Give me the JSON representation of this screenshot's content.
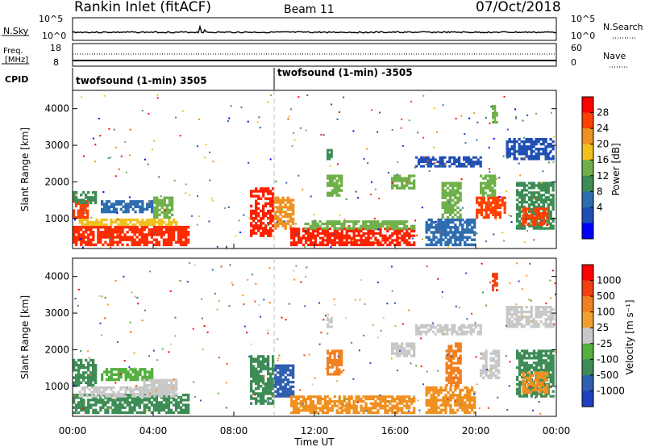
{
  "header": {
    "station": "Rankin Inlet (fitACF)",
    "beam": "Beam 11",
    "date": "07/Oct/2018"
  },
  "top_panels": {
    "nsky_label": "N.Sky",
    "nsky_ticks": [
      "10^5",
      "10^0"
    ],
    "nsearch_label": "N.Search",
    "nsearch_ticks": [
      "10^5",
      "10^0"
    ],
    "freq_label_line1": "Freq.",
    "freq_label_line2": "[MHz]",
    "freq_ticks": [
      "18",
      "8"
    ],
    "nave_label": "Nave",
    "nave_ticks": [
      "60",
      "0"
    ],
    "cpid_label": "CPID",
    "cpid_entries": [
      {
        "time_hours": 0,
        "text": "twofsound (1-min) 3505"
      },
      {
        "time_hours": 10,
        "text": "twofsound (1-min) -3505"
      }
    ]
  },
  "chart_data": [
    {
      "type": "heatmap",
      "title": "Power",
      "xlabel": "",
      "ylabel": "Slant Range [km]",
      "x_range_hours": [
        0,
        24
      ],
      "ylim": [
        180,
        4500
      ],
      "yticks": [
        1000,
        2000,
        3000,
        4000
      ],
      "colorbar": {
        "label": "Power [dB]",
        "ticks": [
          "28",
          "24",
          "20",
          "16",
          "12",
          "8",
          "4"
        ],
        "colors": [
          "#0000ff",
          "#1f4fb4",
          "#2e6db0",
          "#3d8c55",
          "#6fb04a",
          "#f0c020",
          "#f09020",
          "#ff4000",
          "#ff0000"
        ]
      },
      "regions": [
        {
          "t0": 0.0,
          "t1": 5.8,
          "r0": 250,
          "r1": 800,
          "color": "#ff2a00"
        },
        {
          "t0": 0.3,
          "t1": 5.2,
          "r0": 800,
          "r1": 1000,
          "color": "#f0c020"
        },
        {
          "t0": 0.0,
          "t1": 0.8,
          "r0": 1000,
          "r1": 1500,
          "color": "#ff4000"
        },
        {
          "t0": 0.0,
          "t1": 1.2,
          "r0": 1400,
          "r1": 1750,
          "color": "#3d8c55"
        },
        {
          "t0": 1.4,
          "t1": 4.0,
          "r0": 1150,
          "r1": 1500,
          "color": "#2e6db0"
        },
        {
          "t0": 4.0,
          "t1": 5.0,
          "r0": 1000,
          "r1": 1600,
          "color": "#6fb04a"
        },
        {
          "t0": 8.8,
          "t1": 10.0,
          "r0": 500,
          "r1": 1850,
          "color": "#ff2000"
        },
        {
          "t0": 10.0,
          "t1": 11.0,
          "r0": 700,
          "r1": 1600,
          "color": "#f09020"
        },
        {
          "t0": 10.8,
          "t1": 17.0,
          "r0": 250,
          "r1": 750,
          "color": "#ff2000"
        },
        {
          "t0": 11.5,
          "t1": 17.0,
          "r0": 700,
          "r1": 950,
          "color": "#6fb04a"
        },
        {
          "t0": 12.6,
          "t1": 13.4,
          "r0": 1600,
          "r1": 2200,
          "color": "#6fb04a"
        },
        {
          "t0": 12.6,
          "t1": 12.9,
          "r0": 2600,
          "r1": 2900,
          "color": "#3d8c55"
        },
        {
          "t0": 15.8,
          "t1": 17.0,
          "r0": 1800,
          "r1": 2200,
          "color": "#6fb04a"
        },
        {
          "t0": 17.0,
          "t1": 20.3,
          "r0": 2400,
          "r1": 2700,
          "color": "#1f4fb4"
        },
        {
          "t0": 17.5,
          "t1": 20.0,
          "r0": 250,
          "r1": 1000,
          "color": "#2e6db0"
        },
        {
          "t0": 18.3,
          "t1": 19.3,
          "r0": 1000,
          "r1": 2000,
          "color": "#6fb04a"
        },
        {
          "t0": 20.0,
          "t1": 21.5,
          "r0": 1000,
          "r1": 1600,
          "color": "#ff4000"
        },
        {
          "t0": 20.2,
          "t1": 21.0,
          "r0": 1600,
          "r1": 2200,
          "color": "#6fb04a"
        },
        {
          "t0": 20.8,
          "t1": 21.1,
          "r0": 3600,
          "r1": 4100,
          "color": "#6fb04a"
        },
        {
          "t0": 22.0,
          "t1": 23.9,
          "r0": 700,
          "r1": 2000,
          "color": "#3d8c55"
        },
        {
          "t0": 22.3,
          "t1": 23.6,
          "r0": 800,
          "r1": 1300,
          "color": "#ff4000"
        },
        {
          "t0": 21.5,
          "t1": 23.9,
          "r0": 2600,
          "r1": 3200,
          "color": "#1f4fb4"
        }
      ]
    },
    {
      "type": "heatmap",
      "title": "Velocity",
      "xlabel": "Time UT",
      "ylabel": "Slant Range [km]",
      "x_range_hours": [
        0,
        24
      ],
      "xtick_labels": [
        "00:00",
        "04:00",
        "08:00",
        "12:00",
        "16:00",
        "20:00",
        "00:00"
      ],
      "ylim": [
        180,
        4500
      ],
      "yticks": [
        1000,
        2000,
        3000,
        4000
      ],
      "colorbar": {
        "label": "Velocity [m s⁻¹]",
        "ticks": [
          "1000",
          "500",
          "100",
          "25",
          "-25",
          "-100",
          "-500",
          "-1000"
        ],
        "colors": [
          "#1f3fc0",
          "#2e5fb0",
          "#3d8c55",
          "#55b040",
          "#c8c8c8",
          "#f0a030",
          "#f08020",
          "#f04010",
          "#ff0000"
        ]
      },
      "regions": [
        {
          "t0": 0.0,
          "t1": 5.8,
          "r0": 250,
          "r1": 800,
          "color": "#3d8c55"
        },
        {
          "t0": 0.3,
          "t1": 5.2,
          "r0": 700,
          "r1": 1000,
          "color": "#c8c8c8"
        },
        {
          "t0": 0.0,
          "t1": 1.2,
          "r0": 1000,
          "r1": 1750,
          "color": "#3d8c55"
        },
        {
          "t0": 1.4,
          "t1": 4.0,
          "r0": 1150,
          "r1": 1500,
          "color": "#55b040"
        },
        {
          "t0": 3.5,
          "t1": 5.2,
          "r0": 800,
          "r1": 1200,
          "color": "#c8c8c8"
        },
        {
          "t0": 8.8,
          "t1": 10.0,
          "r0": 500,
          "r1": 1850,
          "color": "#3d8c55"
        },
        {
          "t0": 10.0,
          "t1": 11.0,
          "r0": 700,
          "r1": 1600,
          "color": "#2e5fb0"
        },
        {
          "t0": 10.8,
          "t1": 17.0,
          "r0": 250,
          "r1": 750,
          "color": "#f09020"
        },
        {
          "t0": 12.6,
          "t1": 13.4,
          "r0": 1300,
          "r1": 2000,
          "color": "#f08020"
        },
        {
          "t0": 12.6,
          "t1": 12.9,
          "r0": 2600,
          "r1": 2900,
          "color": "#c8c8c8"
        },
        {
          "t0": 15.8,
          "t1": 17.0,
          "r0": 1800,
          "r1": 2200,
          "color": "#c8c8c8"
        },
        {
          "t0": 17.0,
          "t1": 20.3,
          "r0": 2400,
          "r1": 2700,
          "color": "#c8c8c8"
        },
        {
          "t0": 17.5,
          "t1": 20.0,
          "r0": 250,
          "r1": 1000,
          "color": "#f09020"
        },
        {
          "t0": 18.5,
          "t1": 19.3,
          "r0": 1000,
          "r1": 2200,
          "color": "#f08020"
        },
        {
          "t0": 20.2,
          "t1": 21.2,
          "r0": 1200,
          "r1": 2000,
          "color": "#c8c8c8"
        },
        {
          "t0": 20.8,
          "t1": 21.1,
          "r0": 3600,
          "r1": 4100,
          "color": "#f04010"
        },
        {
          "t0": 22.0,
          "t1": 23.9,
          "r0": 700,
          "r1": 2000,
          "color": "#3d8c55"
        },
        {
          "t0": 22.3,
          "t1": 23.6,
          "r0": 800,
          "r1": 1400,
          "color": "#f09020"
        },
        {
          "t0": 21.5,
          "t1": 23.9,
          "r0": 2600,
          "r1": 3200,
          "color": "#c8c8c8"
        }
      ]
    }
  ]
}
